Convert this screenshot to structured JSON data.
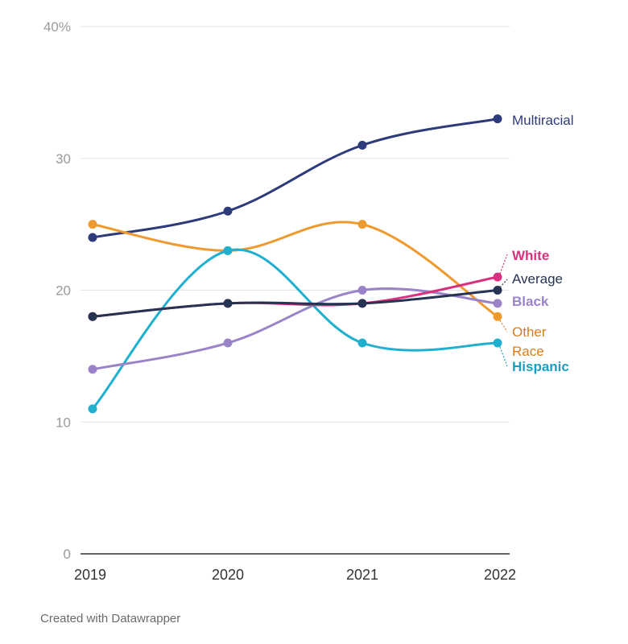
{
  "chart_data": {
    "type": "line",
    "x": [
      "2019",
      "2020",
      "2021",
      "2022"
    ],
    "y_ticks": [
      "40%",
      "30",
      "20",
      "10",
      "0"
    ],
    "ylim": [
      0,
      40
    ],
    "grid": true,
    "series": [
      {
        "name": "Multiracial",
        "values": [
          24,
          26,
          31,
          33
        ],
        "color": "#2e3b7a",
        "bold": false
      },
      {
        "name": "Other Race",
        "values": [
          25,
          23,
          25,
          18
        ],
        "color": "#ef9a2e",
        "bold": false
      },
      {
        "name": "Hispanic",
        "values": [
          11,
          23,
          16,
          16
        ],
        "color": "#1fb0d0",
        "bold": true
      },
      {
        "name": "Black",
        "values": [
          14,
          16,
          20,
          19
        ],
        "color": "#9b83c9",
        "bold": true
      },
      {
        "name": "White",
        "values": [
          18,
          19,
          19,
          21
        ],
        "color": "#d8327e",
        "bold": true
      },
      {
        "name": "Average",
        "values": [
          18,
          19,
          19,
          20
        ],
        "color": "#273352",
        "bold": false
      }
    ],
    "labels": {
      "Multiracial": [
        "Multiracial"
      ],
      "White": [
        "White"
      ],
      "Average": [
        "Average"
      ],
      "Black": [
        "Black"
      ],
      "Other Race": [
        "Other",
        "Race"
      ],
      "Hispanic": [
        "Hispanic"
      ]
    },
    "label_colors": {
      "Multiracial": "#2e3b7a",
      "White": "#d8327e",
      "Average": "#273352",
      "Black": "#9b83c9",
      "Other Race": "#d97c1c",
      "Hispanic": "#1a9fc2"
    }
  },
  "footer": "Created with Datawrapper"
}
